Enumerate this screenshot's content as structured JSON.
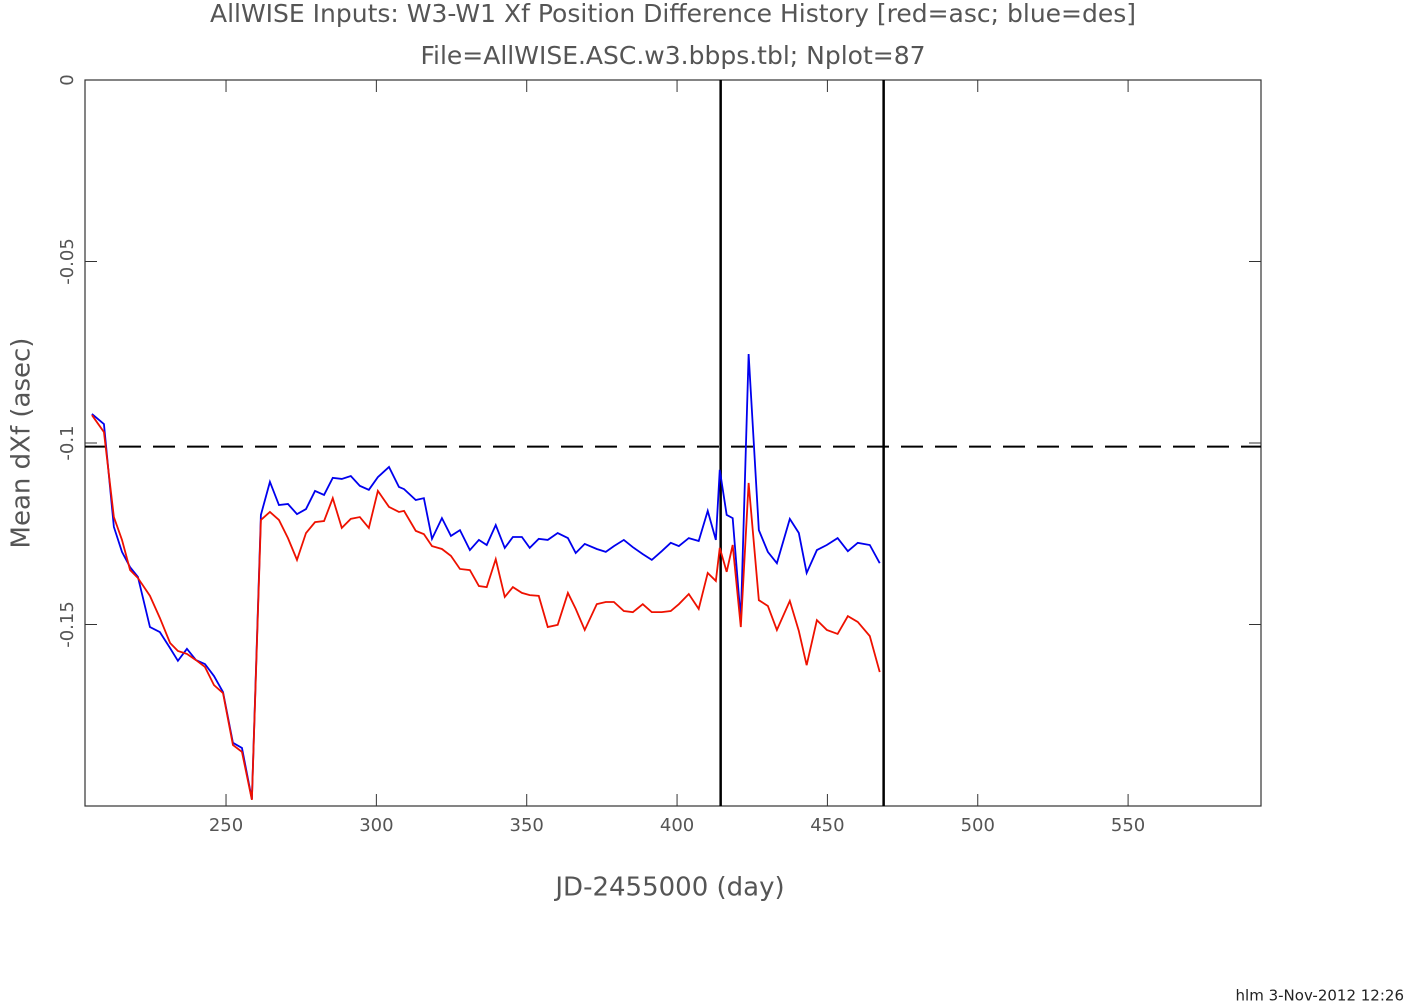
{
  "chart_data": {
    "type": "line",
    "title": "AllWISE Inputs: W3-W1 Xf Position Difference History [red=asc; blue=des]",
    "subtitle": "File=AllWISE.ASC.w3.bbps.tbl; Nplot=87",
    "x_label": "JD-2455000 (day)",
    "y_label": "Mean dXf (asec)",
    "footer": "hlm   3-Nov-2012 12:26",
    "xlim": [
      203.1,
      594.2
    ],
    "ylim": [
      -0.2,
      0
    ],
    "xticks": [
      250,
      300,
      350,
      400,
      450,
      500,
      550
    ],
    "yticks": [
      0,
      -0.05,
      -0.1,
      -0.15
    ],
    "hline": -0.101,
    "vlines": [
      414.5,
      468.7
    ],
    "x": [
      205.4,
      209.4,
      212.7,
      215.4,
      218.1,
      220.7,
      224.7,
      228.0,
      231.4,
      234.0,
      237.0,
      240.0,
      243.0,
      246.0,
      249.0,
      252.3,
      255.3,
      258.6,
      261.6,
      264.6,
      267.6,
      270.6,
      273.6,
      276.6,
      279.6,
      282.6,
      285.5,
      288.5,
      291.5,
      294.5,
      297.5,
      300.5,
      304.2,
      307.5,
      309.2,
      313.1,
      315.8,
      318.5,
      321.8,
      324.8,
      327.8,
      331.1,
      334.1,
      336.7,
      339.7,
      342.7,
      345.4,
      348.4,
      351.0,
      354.0,
      357.0,
      360.3,
      363.7,
      366.3,
      369.3,
      373.3,
      376.3,
      379.0,
      382.3,
      385.3,
      388.6,
      391.6,
      394.9,
      397.9,
      400.6,
      403.9,
      407.2,
      410.2,
      412.9,
      414.2,
      416.5,
      418.5,
      421.2,
      423.8,
      427.2,
      430.2,
      433.2,
      437.5,
      440.5,
      443.1,
      446.5,
      449.8,
      453.4,
      456.8,
      460.1,
      464.1,
      467.4
    ],
    "series": [
      {
        "name": "des",
        "color": "#0000ee",
        "values": [
          -0.092,
          -0.0948,
          -0.1231,
          -0.13,
          -0.1342,
          -0.1369,
          -0.1507,
          -0.1521,
          -0.1565,
          -0.16,
          -0.1567,
          -0.1598,
          -0.1609,
          -0.1642,
          -0.1686,
          -0.1826,
          -0.184,
          -0.1981,
          -0.1198,
          -0.1107,
          -0.1171,
          -0.1168,
          -0.1196,
          -0.1182,
          -0.1132,
          -0.1143,
          -0.1096,
          -0.1099,
          -0.1091,
          -0.1118,
          -0.1129,
          -0.1094,
          -0.1066,
          -0.1121,
          -0.1127,
          -0.1157,
          -0.1152,
          -0.1264,
          -0.1207,
          -0.1256,
          -0.124,
          -0.1295,
          -0.1267,
          -0.1281,
          -0.1226,
          -0.1289,
          -0.1259,
          -0.1259,
          -0.1289,
          -0.1264,
          -0.1267,
          -0.1248,
          -0.1262,
          -0.1303,
          -0.1278,
          -0.1292,
          -0.13,
          -0.1284,
          -0.1267,
          -0.1287,
          -0.1306,
          -0.1322,
          -0.1298,
          -0.1275,
          -0.1284,
          -0.1262,
          -0.127,
          -0.1187,
          -0.1267,
          -0.1074,
          -0.1198,
          -0.1207,
          -0.1488,
          -0.0755,
          -0.124,
          -0.13,
          -0.1331,
          -0.1209,
          -0.1248,
          -0.1358,
          -0.1295,
          -0.1281,
          -0.1262,
          -0.1298,
          -0.1275,
          -0.1281,
          -0.1331
        ]
      },
      {
        "name": "asc",
        "color": "#ee1100",
        "values": [
          -0.0923,
          -0.097,
          -0.1204,
          -0.1267,
          -0.135,
          -0.1372,
          -0.1421,
          -0.1482,
          -0.1551,
          -0.1573,
          -0.1581,
          -0.1598,
          -0.1617,
          -0.1667,
          -0.1689,
          -0.1832,
          -0.1851,
          -0.1983,
          -0.1212,
          -0.119,
          -0.1212,
          -0.1262,
          -0.1322,
          -0.1248,
          -0.1218,
          -0.1215,
          -0.1152,
          -0.1234,
          -0.1209,
          -0.1204,
          -0.1234,
          -0.1132,
          -0.1176,
          -0.119,
          -0.1187,
          -0.1242,
          -0.1251,
          -0.1284,
          -0.1292,
          -0.1311,
          -0.1347,
          -0.135,
          -0.1394,
          -0.1397,
          -0.132,
          -0.1424,
          -0.1397,
          -0.1413,
          -0.1419,
          -0.1421,
          -0.1507,
          -0.1501,
          -0.1413,
          -0.1457,
          -0.1515,
          -0.1444,
          -0.1438,
          -0.1438,
          -0.1463,
          -0.1466,
          -0.1444,
          -0.1466,
          -0.1466,
          -0.1463,
          -0.1444,
          -0.1416,
          -0.1457,
          -0.1358,
          -0.138,
          -0.1289,
          -0.1355,
          -0.1281,
          -0.1507,
          -0.111,
          -0.1433,
          -0.1449,
          -0.1515,
          -0.1435,
          -0.1518,
          -0.1612,
          -0.1488,
          -0.1515,
          -0.1526,
          -0.1477,
          -0.1493,
          -0.1532,
          -0.1631
        ]
      }
    ]
  }
}
